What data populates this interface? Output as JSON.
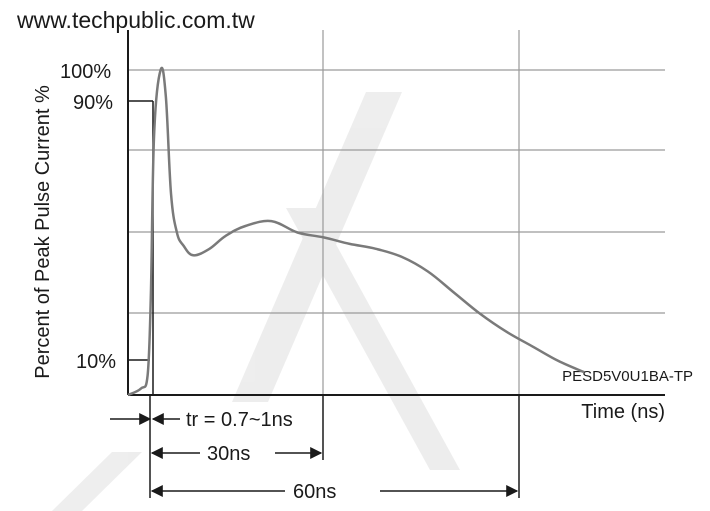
{
  "header_text": "www.techpublic.com.tw",
  "chart_data": {
    "type": "line",
    "title": "",
    "ylabel": "Percent of Peak Pulse Current %",
    "xlabel": "Time (ns)",
    "part_number": "PESD5V0U1BA-TP",
    "y_tick_labels": [
      "100%",
      "90%",
      "10%"
    ],
    "grid": true,
    "xlim": [
      0,
      70
    ],
    "ylim": [
      0,
      100
    ],
    "series": [
      {
        "values_x": [
          0,
          2,
          3,
          3.5,
          4,
          5,
          5.8,
          6.6,
          7.5,
          8.5,
          10,
          12.5,
          15,
          18,
          22,
          26,
          30,
          34,
          38,
          42,
          46,
          50,
          54,
          58,
          62,
          66,
          70
        ],
        "values_y": [
          0,
          2,
          6,
          30,
          80,
          100,
          92,
          62,
          50,
          46,
          43,
          45,
          49,
          52,
          53.5,
          50,
          48.5,
          46.5,
          45,
          42.5,
          38,
          31.5,
          25,
          19.5,
          15,
          10.5,
          7
        ]
      }
    ],
    "annotations": [
      {
        "label": "tr = 0.7~1ns"
      },
      {
        "label": "30ns"
      },
      {
        "label": "60ns"
      }
    ]
  }
}
